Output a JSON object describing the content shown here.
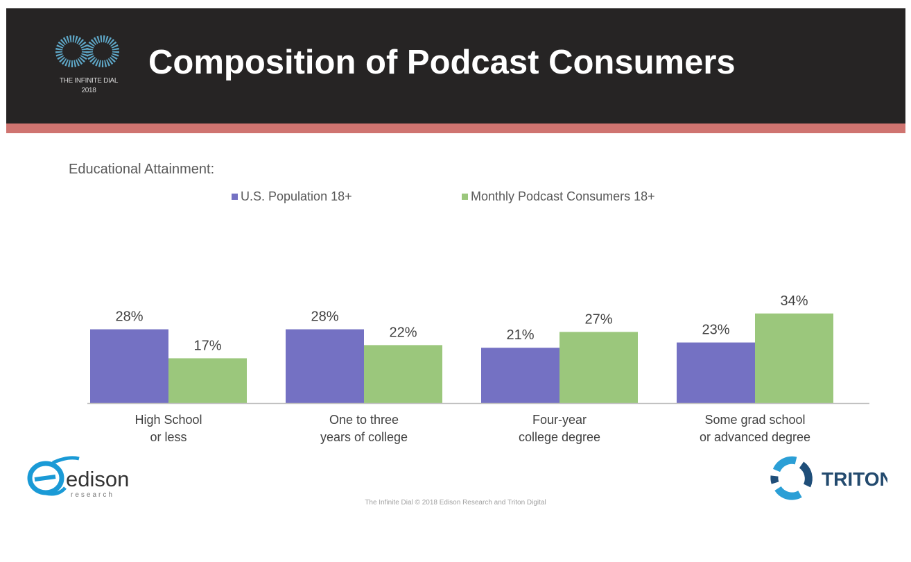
{
  "header": {
    "logo_line1": "THE INFINITE DIAL",
    "logo_line2": "2018",
    "title": "Composition of Podcast Consumers",
    "background_color": "#262424",
    "stripe_color": "#cf7470"
  },
  "chart_data": {
    "type": "bar",
    "title": "Educational Attainment:",
    "categories": [
      [
        "High School",
        "or less"
      ],
      [
        "One to three",
        "years of college"
      ],
      [
        "Four-year",
        "college degree"
      ],
      [
        "Some grad school",
        "or advanced degree"
      ]
    ],
    "series": [
      {
        "name": "U.S. Population 18+",
        "values": [
          28,
          28,
          21,
          23
        ],
        "color": "#7471c3"
      },
      {
        "name": "Monthly Podcast Consumers 18+",
        "values": [
          17,
          22,
          27,
          34
        ],
        "color": "#9bc77c"
      }
    ],
    "value_suffix": "%",
    "ylim": [
      0,
      40
    ],
    "grid": false,
    "legend_position": "top"
  },
  "logos": {
    "edison_name": "edison",
    "edison_sub": "research",
    "triton_name": "TRITON"
  },
  "footer": {
    "text": "The Infinite Dial   © 2018 Edison Research and Triton Digital"
  }
}
